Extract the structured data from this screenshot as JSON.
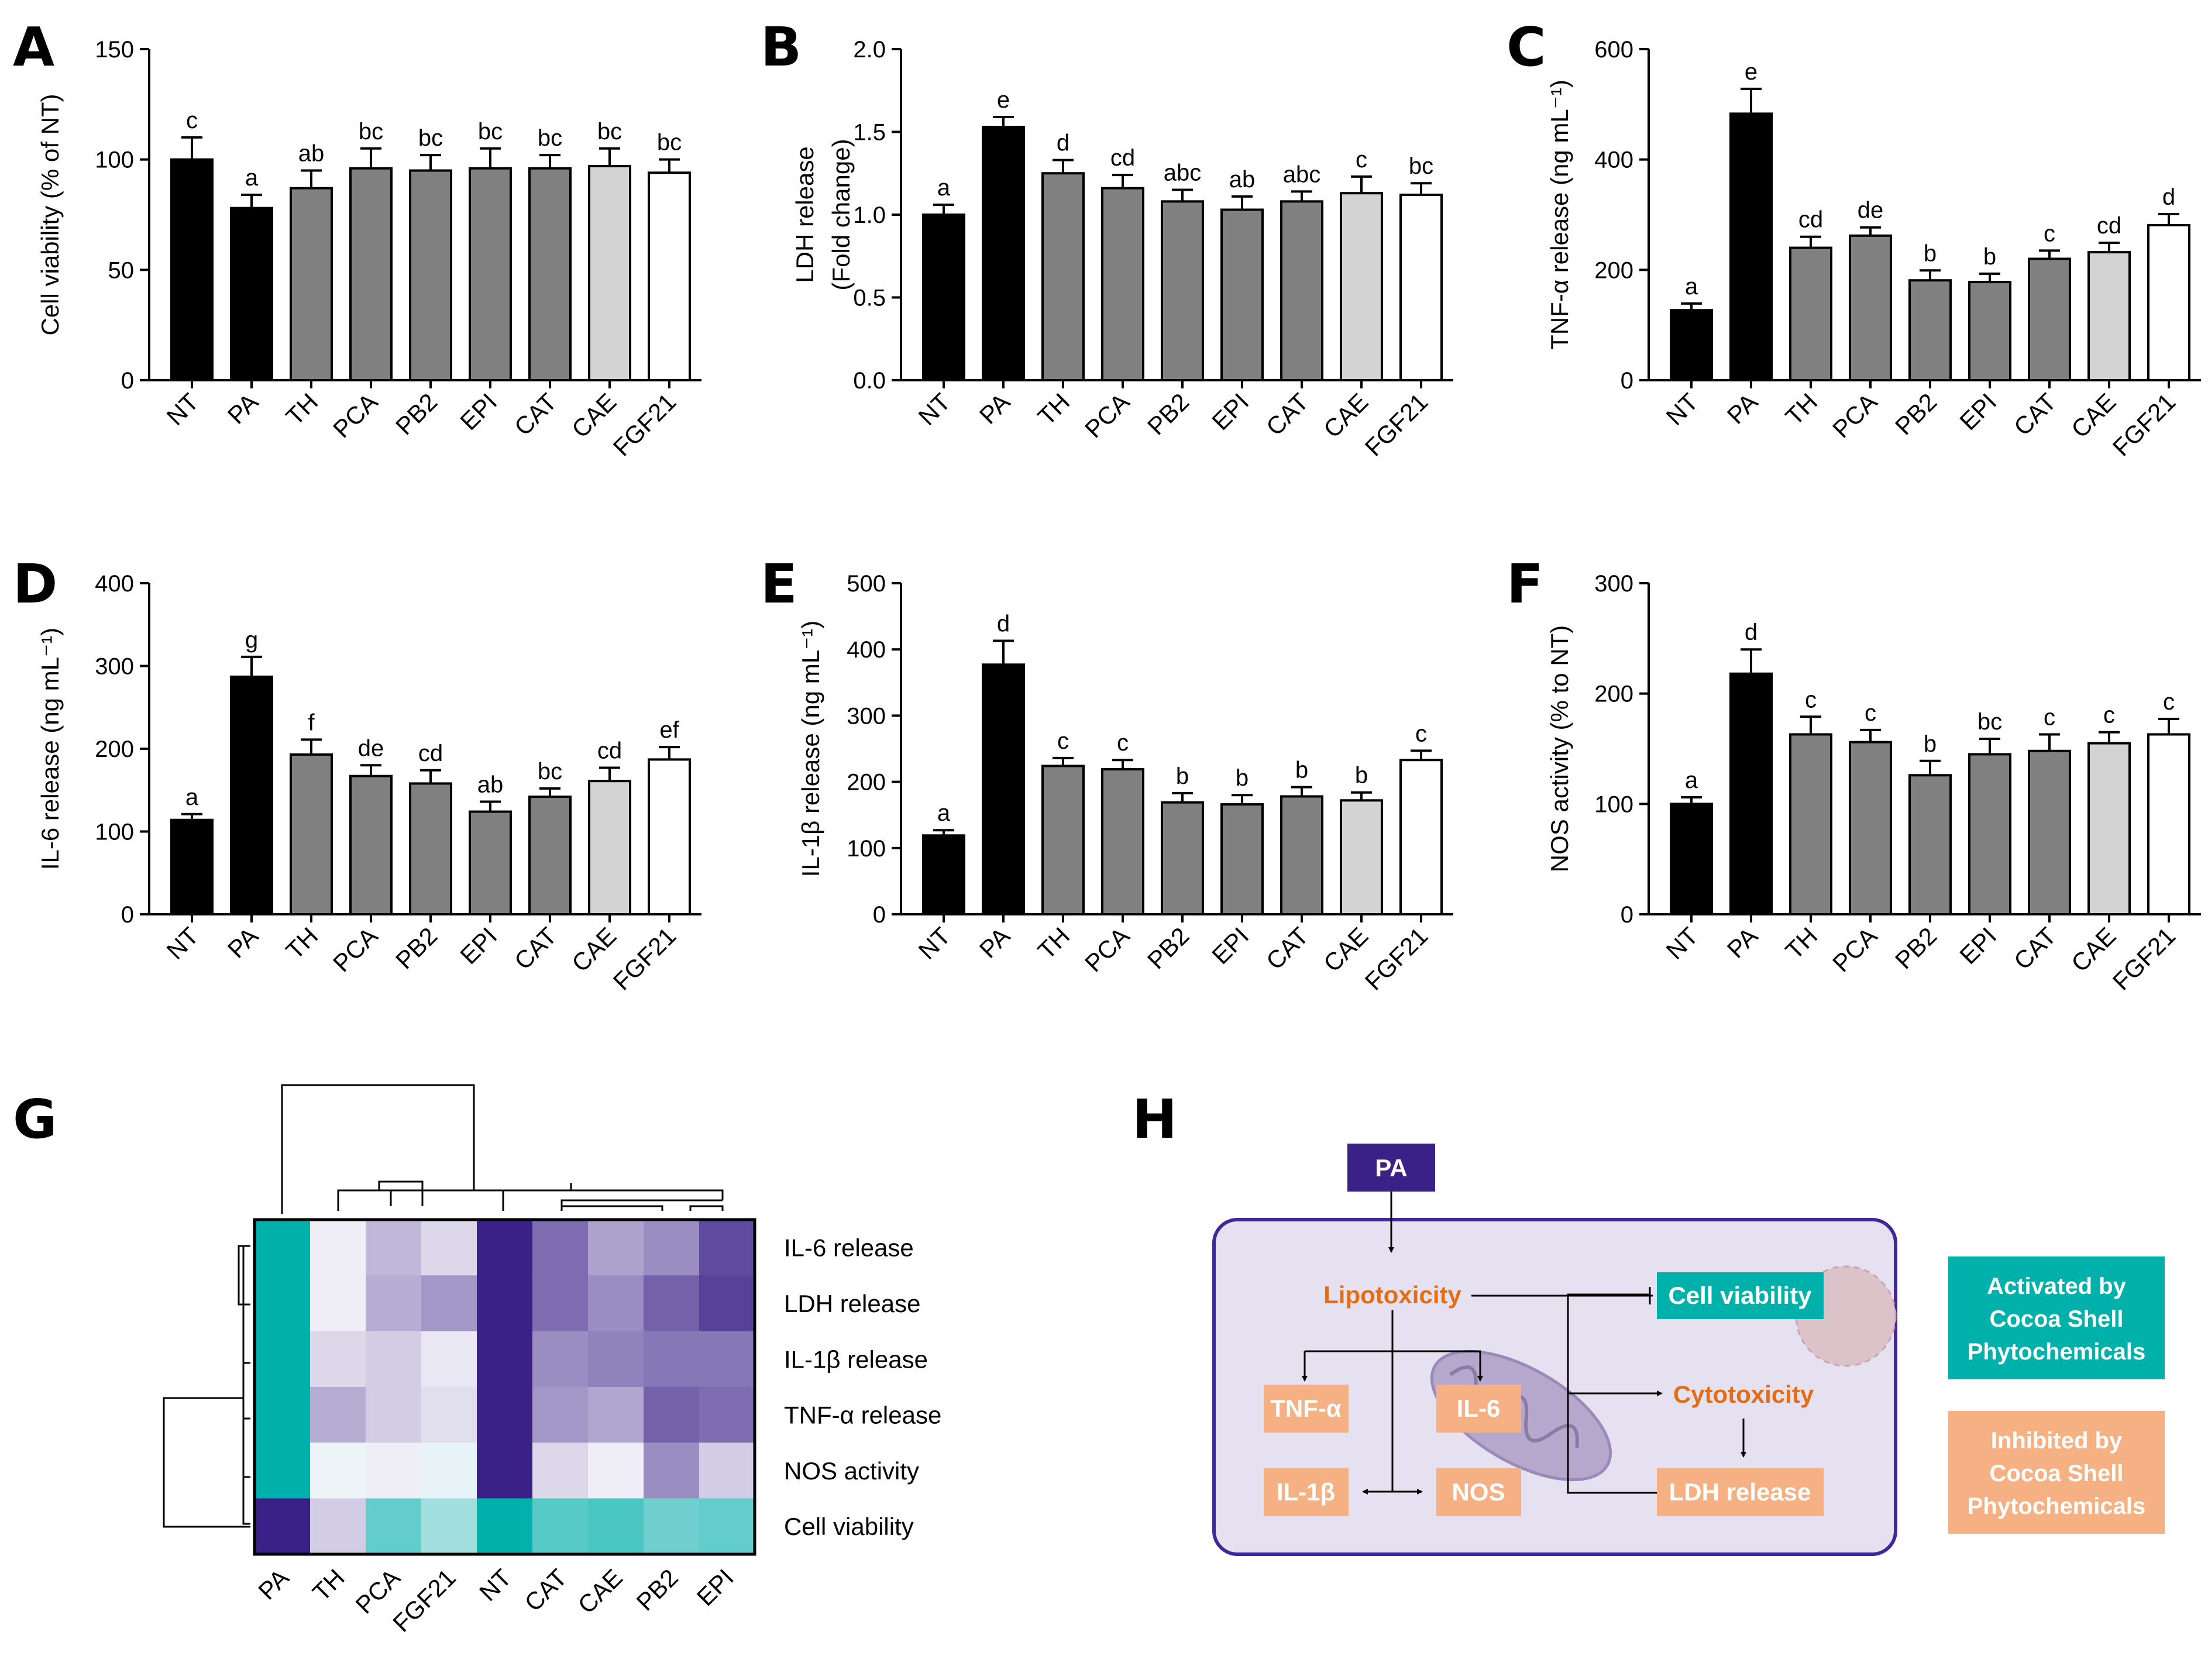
{
  "colors": {
    "NT": "#000000",
    "PA": "#000000",
    "TH": "#808080",
    "PCA": "#808080",
    "PB2": "#808080",
    "EPI": "#808080",
    "CAT": "#808080",
    "CAE": "#d3d3d3",
    "FGF21": "#ffffff",
    "teal": "#00b0aa",
    "purple_dark": "#3a2187",
    "orange_box": "#f5b184",
    "orange_text": "#e46c12",
    "cell_bg": "#e5e0ee",
    "cell_border": "#40289a"
  },
  "chart_data": [
    {
      "panel": "A",
      "type": "bar",
      "categories": [
        "NT",
        "PA",
        "TH",
        "PCA",
        "PB2",
        "EPI",
        "CAT",
        "CAE",
        "FGF21"
      ],
      "values": [
        100,
        78,
        87,
        96,
        95,
        96,
        96,
        97,
        94
      ],
      "errors": [
        10,
        6,
        8,
        9,
        7,
        9,
        6,
        8,
        6
      ],
      "letters": [
        "c",
        "a",
        "ab",
        "bc",
        "bc",
        "bc",
        "bc",
        "bc",
        "bc"
      ],
      "ylabel": "Cell viability (% of NT)",
      "ylabel2": "",
      "ylim": [
        0,
        150
      ],
      "yticks": [
        0,
        50,
        100,
        150
      ],
      "ytick_labels": [
        "0",
        "50",
        "100",
        "150"
      ]
    },
    {
      "panel": "B",
      "type": "bar",
      "categories": [
        "NT",
        "PA",
        "TH",
        "PCA",
        "PB2",
        "EPI",
        "CAT",
        "CAE",
        "FGF21"
      ],
      "values": [
        1.0,
        1.53,
        1.25,
        1.16,
        1.08,
        1.03,
        1.08,
        1.13,
        1.12
      ],
      "errors": [
        0.06,
        0.06,
        0.08,
        0.08,
        0.07,
        0.08,
        0.06,
        0.1,
        0.07
      ],
      "letters": [
        "a",
        "e",
        "d",
        "cd",
        "abc",
        "ab",
        "abc",
        "c",
        "bc"
      ],
      "ylabel": "LDH release",
      "ylabel2": "(Fold change)",
      "ylim": [
        0,
        2
      ],
      "yticks": [
        0,
        0.5,
        1,
        1.5,
        2
      ],
      "ytick_labels": [
        "0.0",
        "0.5",
        "1.0",
        "1.5",
        "2.0"
      ]
    },
    {
      "panel": "C",
      "type": "bar",
      "categories": [
        "NT",
        "PA",
        "TH",
        "PCA",
        "PB2",
        "EPI",
        "CAT",
        "CAE",
        "FGF21"
      ],
      "values": [
        127,
        483,
        240,
        262,
        181,
        178,
        220,
        232,
        281
      ],
      "errors": [
        12,
        45,
        20,
        15,
        18,
        15,
        15,
        17,
        20
      ],
      "letters": [
        "a",
        "e",
        "cd",
        "de",
        "b",
        "b",
        "c",
        "cd",
        "d"
      ],
      "ylabel": "TNF-α release (ng mL⁻¹)",
      "ylabel2": "",
      "ylim": [
        0,
        600
      ],
      "yticks": [
        0,
        200,
        400,
        600
      ],
      "ytick_labels": [
        "0",
        "200",
        "400",
        "600"
      ]
    },
    {
      "panel": "D",
      "type": "bar",
      "categories": [
        "NT",
        "PA",
        "TH",
        "PCA",
        "PB2",
        "EPI",
        "CAT",
        "CAE",
        "FGF21"
      ],
      "values": [
        114,
        287,
        193,
        167,
        158,
        124,
        142,
        161,
        187
      ],
      "errors": [
        7,
        24,
        18,
        13,
        16,
        12,
        10,
        16,
        15
      ],
      "letters": [
        "a",
        "g",
        "f",
        "de",
        "cd",
        "ab",
        "bc",
        "cd",
        "ef"
      ],
      "ylabel": "IL-6 release (ng mL⁻¹)",
      "ylabel2": "",
      "ylim": [
        0,
        400
      ],
      "yticks": [
        0,
        100,
        200,
        300,
        400
      ],
      "ytick_labels": [
        "0",
        "100",
        "200",
        "300",
        "400"
      ]
    },
    {
      "panel": "E",
      "type": "bar",
      "categories": [
        "NT",
        "PA",
        "TH",
        "PCA",
        "PB2",
        "EPI",
        "CAT",
        "CAE",
        "FGF21"
      ],
      "values": [
        119,
        377,
        224,
        219,
        169,
        166,
        178,
        172,
        233
      ],
      "errors": [
        8,
        36,
        12,
        14,
        14,
        14,
        14,
        12,
        14
      ],
      "letters": [
        "a",
        "d",
        "c",
        "c",
        "b",
        "b",
        "b",
        "b",
        "c"
      ],
      "ylabel": "IL-1β release (ng mL⁻¹)",
      "ylabel2": "",
      "ylim": [
        0,
        500
      ],
      "yticks": [
        0,
        100,
        200,
        300,
        400,
        500
      ],
      "ytick_labels": [
        "0",
        "100",
        "200",
        "300",
        "400",
        "500"
      ]
    },
    {
      "panel": "F",
      "type": "bar",
      "categories": [
        "NT",
        "PA",
        "TH",
        "PCA",
        "PB2",
        "EPI",
        "CAT",
        "CAE",
        "FGF21"
      ],
      "values": [
        100,
        218,
        163,
        156,
        126,
        145,
        148,
        155,
        163
      ],
      "errors": [
        6,
        22,
        16,
        11,
        13,
        14,
        15,
        10,
        14
      ],
      "letters": [
        "a",
        "d",
        "c",
        "c",
        "b",
        "bc",
        "c",
        "c",
        "c"
      ],
      "ylabel": "NOS activity (% to NT)",
      "ylabel2": "",
      "ylim": [
        0,
        300
      ],
      "yticks": [
        0,
        100,
        200,
        300
      ],
      "ytick_labels": [
        "0",
        "100",
        "200",
        "300"
      ]
    },
    {
      "panel": "G",
      "type": "heatmap",
      "columns": [
        "PA",
        "TH",
        "PCA",
        "FGF21",
        "NT",
        "CAT",
        "CAE",
        "PB2",
        "EPI"
      ],
      "rows": [
        "IL-6 release",
        "LDH release",
        "IL-1β release",
        "TNF-α release",
        "NOS activity",
        "Cell viability"
      ],
      "z": [
        [
          1.0,
          -0.05,
          -0.3,
          -0.15,
          -1.0,
          -0.65,
          -0.4,
          -0.5,
          -0.8
        ],
        [
          1.0,
          -0.05,
          -0.35,
          -0.45,
          -1.0,
          -0.65,
          -0.5,
          -0.7,
          -0.85
        ],
        [
          1.0,
          -0.15,
          -0.2,
          -0.08,
          -1.0,
          -0.5,
          -0.55,
          -0.6,
          -0.6
        ],
        [
          1.0,
          -0.35,
          -0.2,
          -0.12,
          -1.0,
          -0.45,
          -0.38,
          -0.7,
          -0.65
        ],
        [
          1.0,
          0.05,
          -0.05,
          0.07,
          -1.0,
          -0.15,
          -0.05,
          -0.5,
          -0.2
        ],
        [
          -1.0,
          -0.2,
          0.6,
          0.35,
          1.0,
          0.65,
          0.7,
          0.55,
          0.6
        ]
      ]
    }
  ],
  "panels": {
    "A": "A",
    "B": "B",
    "C": "C",
    "D": "D",
    "E": "E",
    "F": "F",
    "G": "G",
    "H": "H"
  },
  "scheme": {
    "pa": "PA",
    "lipotoxicity": "Lipotoxicity",
    "cell_viability": "Cell viability",
    "tnf": "TNF-α",
    "il6": "IL-6",
    "cytotoxicity": "Cytotoxicity",
    "il1b": "IL-1β",
    "nos": "NOS",
    "ldh": "LDH release",
    "legend_activated": [
      "Activated by",
      "Cocoa Shell",
      "Phytochemicals"
    ],
    "legend_inhibited": [
      "Inhibited by",
      "Cocoa Shell",
      "Phytochemicals"
    ]
  }
}
